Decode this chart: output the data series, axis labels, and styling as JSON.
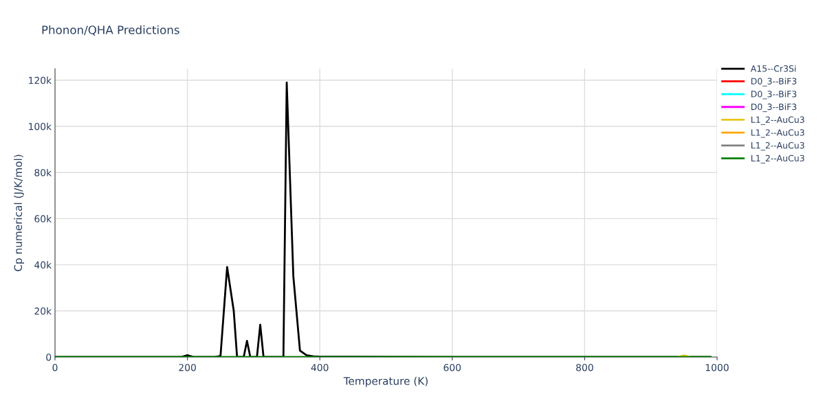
{
  "chart_data": {
    "type": "line",
    "title": "Phonon/QHA Predictions",
    "xlabel": "Temperature (K)",
    "ylabel": "Cp numerical (J/K/mol)",
    "xlim": [
      0,
      1000
    ],
    "xticks": [
      0,
      200,
      400,
      600,
      800,
      1000
    ],
    "ylim": [
      0,
      125000
    ],
    "yticks": [
      {
        "value": 0,
        "label": "0"
      },
      {
        "value": 20000,
        "label": "20k"
      },
      {
        "value": 40000,
        "label": "40k"
      },
      {
        "value": 60000,
        "label": "60k"
      },
      {
        "value": 80000,
        "label": "80k"
      },
      {
        "value": 100000,
        "label": "100k"
      },
      {
        "value": 120000,
        "label": "120k"
      }
    ],
    "grid": true,
    "legend": "top right",
    "series": [
      {
        "name": "A15--Cr3Si",
        "color": "#000000",
        "x": [
          0,
          190,
          200,
          210,
          240,
          250,
          260,
          270,
          275,
          285,
          290,
          295,
          305,
          310,
          315,
          345,
          350,
          360,
          370,
          380,
          390,
          400,
          500,
          600,
          990
        ],
        "values": [
          0,
          0,
          800,
          0,
          0,
          500,
          39000,
          20000,
          0,
          0,
          7000,
          0,
          0,
          14000,
          0,
          0,
          119000,
          35000,
          2800,
          800,
          300,
          200,
          100,
          0,
          0
        ]
      },
      {
        "name": "D0_3--BiF3",
        "color": "#ff0000"
      },
      {
        "name": "D0_3--BiF3",
        "color": "#00ffff"
      },
      {
        "name": "D0_3--BiF3",
        "color": "#ff00ff"
      },
      {
        "name": "L1_2--AuCu3",
        "color": "#e6c619",
        "x": [
          940,
          950,
          960
        ],
        "values": [
          0,
          700,
          0
        ]
      },
      {
        "name": "L1_2--AuCu3",
        "color": "#ffa500"
      },
      {
        "name": "L1_2--AuCu3",
        "color": "#808080"
      },
      {
        "name": "L1_2--AuCu3",
        "color": "#008000",
        "x": [
          0,
          500,
          990
        ],
        "values": [
          0,
          0,
          0
        ]
      }
    ]
  }
}
